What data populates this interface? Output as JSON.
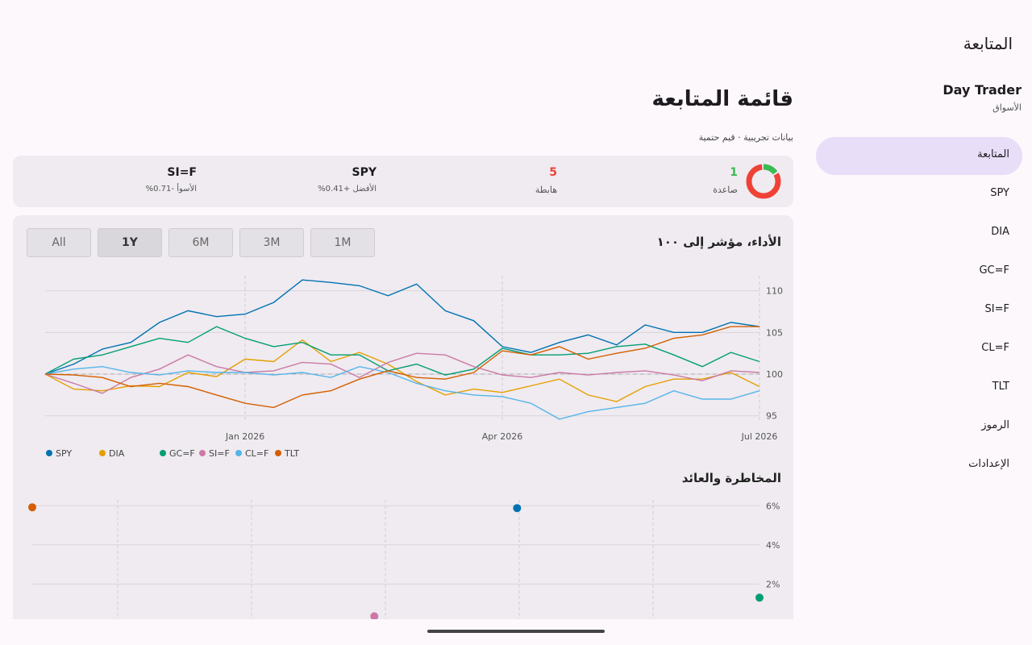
{
  "sidebar": {
    "title": "المتابعة",
    "app_name": "Day Trader",
    "app_subtitle": "الأسواق",
    "nav": [
      "المتابعة",
      "SPY",
      "DIA",
      "GC=F",
      "SI=F",
      "CL=F",
      "TLT",
      "الرموز",
      "الإعدادات"
    ],
    "selected": "المتابعة"
  },
  "header": {
    "title": "قائمة المتابعة",
    "subtitle": "بيانات تجريبية · قيم حتمية"
  },
  "summary": {
    "up": {
      "count": 1,
      "label": "صاعدة",
      "color": "#3cba54"
    },
    "down": {
      "count": 5,
      "label": "هابطة",
      "color": "#ef4136"
    },
    "best": {
      "symbol": "SPY",
      "label": "الأفضل +0.41%"
    },
    "worst": {
      "symbol": "SI=F",
      "label": "الأسوأ -0.71%"
    }
  },
  "range_buttons": {
    "options": [
      "1M",
      "3M",
      "6M",
      "1Y",
      "All"
    ],
    "selected": "1Y"
  },
  "chart_data": [
    {
      "type": "line",
      "title": "الأداء، مؤشر إلى ١٠٠",
      "categories": [
        null,
        null,
        null,
        null,
        null,
        null,
        null,
        "Jan 2026",
        null,
        null,
        null,
        null,
        null,
        null,
        null,
        null,
        "Apr 2026",
        null,
        null,
        null,
        null,
        null,
        null,
        null,
        null,
        "Jul 2026"
      ],
      "series": [
        {
          "name": "SPY",
          "color": "#0072b2",
          "values": [
            100,
            101.2,
            103,
            103.8,
            106.2,
            107.6,
            106.9,
            107.2,
            108.6,
            111.3,
            111,
            110.6,
            109.4,
            110.8,
            107.6,
            106.4,
            103.3,
            102.6,
            103.8,
            104.7,
            103.5,
            105.9,
            105,
            105,
            106.2,
            105.7
          ]
        },
        {
          "name": "DIA",
          "color": "#e69f00",
          "values": [
            100,
            98.2,
            98,
            98.6,
            98.5,
            100.2,
            99.7,
            101.8,
            101.5,
            104.1,
            101.5,
            102.6,
            101.2,
            99.1,
            97.5,
            98.2,
            97.8,
            98.6,
            99.4,
            97.5,
            96.7,
            98.5,
            99.4,
            99.4,
            100.2,
            98.5
          ]
        },
        {
          "name": "GC=F",
          "color": "#009e73",
          "values": [
            100,
            101.8,
            102.3,
            103.3,
            104.3,
            103.8,
            105.7,
            104.3,
            103.3,
            103.8,
            102.3,
            102.3,
            100.4,
            101.2,
            99.9,
            100.6,
            103.1,
            102.3,
            102.3,
            102.5,
            103.3,
            103.6,
            102.3,
            100.9,
            102.6,
            101.5
          ]
        },
        {
          "name": "SI=F",
          "color": "#cc79a7",
          "values": [
            100,
            98.9,
            97.7,
            99.6,
            100.6,
            102.3,
            100.9,
            100.2,
            100.4,
            101.4,
            101.2,
            99.6,
            101.4,
            102.5,
            102.3,
            100.9,
            99.9,
            99.6,
            100.2,
            99.9,
            100.2,
            100.4,
            99.9,
            99.2,
            100.4,
            100.2
          ]
        },
        {
          "name": "CL=F",
          "color": "#56b4e9",
          "values": [
            100,
            100.6,
            100.9,
            100.2,
            99.9,
            100.4,
            100.2,
            100.2,
            99.9,
            100.2,
            99.6,
            100.9,
            100.2,
            98.9,
            98,
            97.5,
            97.3,
            96.5,
            94.6,
            95.5,
            96,
            96.5,
            98,
            97,
            97,
            98
          ]
        },
        {
          "name": "TLT",
          "color": "#d55e00",
          "values": [
            100,
            99.9,
            99.6,
            98.5,
            98.9,
            98.5,
            97.5,
            96.5,
            96,
            97.5,
            98,
            99.4,
            100.4,
            99.6,
            99.4,
            100.2,
            102.8,
            102.3,
            103.3,
            101.8,
            102.5,
            103.1,
            104.3,
            104.7,
            105.7,
            105.7
          ]
        }
      ],
      "ylim": [
        94.2,
        111.8
      ],
      "yticks": [
        95,
        100,
        105,
        110
      ],
      "grid": true,
      "baseline": 100,
      "legend": "bottom-left"
    },
    {
      "type": "scatter",
      "title": "المخاطرة والعائد",
      "x": [
        0,
        18,
        27,
        12.7
      ],
      "values": [
        5.92,
        5.88,
        1.3,
        0.35
      ],
      "colors": [
        "#d55e00",
        "#0072b2",
        "#009e73",
        "#cc79a7"
      ],
      "xlim": [
        0,
        27
      ],
      "ylim": [
        0.2,
        6.3
      ],
      "yticks": [
        {
          "value": 2,
          "label": "2%"
        },
        {
          "value": 4,
          "label": "4%"
        },
        {
          "value": 6,
          "label": "6%"
        }
      ],
      "grid": true
    }
  ]
}
